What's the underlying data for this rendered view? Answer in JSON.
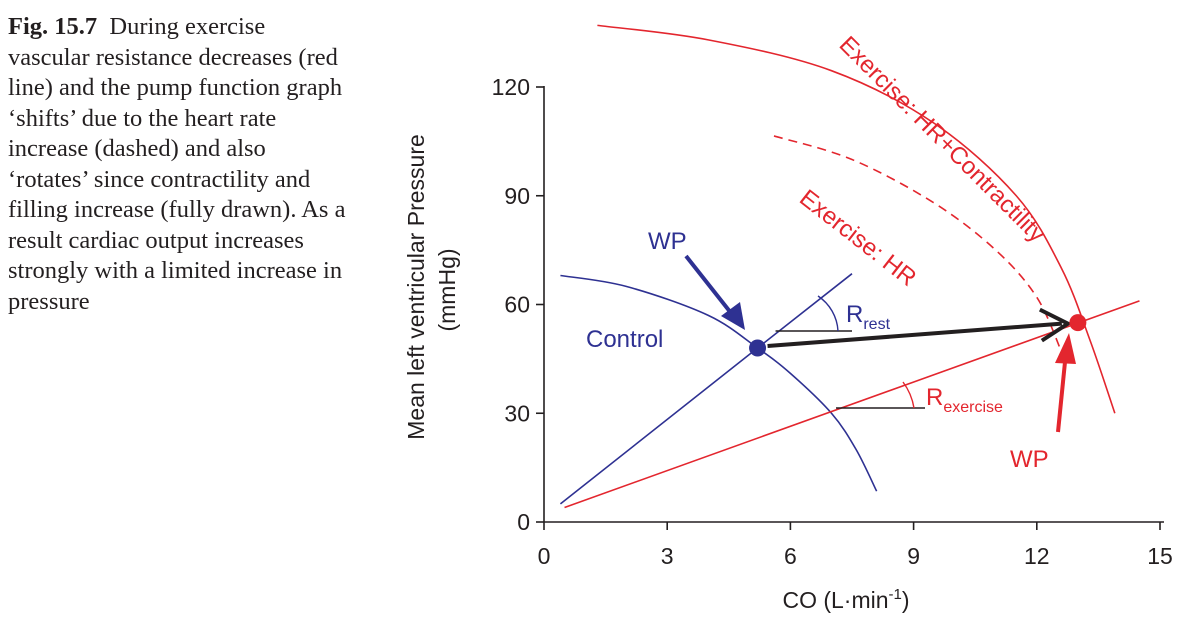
{
  "caption": {
    "label": "Fig. 15.7",
    "text": "During exercise vascular resistance decreases (red line) and the pump function graph ‘shifts’ due to the heart rate increase (dashed) and also ‘rotates’ since contractility and filling increase (fully drawn). As a result cardiac output increases strongly with a limited increase in pressure"
  },
  "colors": {
    "control": "#2e3192",
    "exercise": "#e3262e",
    "axis": "#231f20",
    "arrow": "#231f20"
  },
  "chart_data": {
    "type": "line",
    "title": "",
    "xlabel": "CO (L·min",
    "xlabel_sup": "-1",
    "xlabel_close": ")",
    "ylabel": "Mean left ventricular Pressure",
    "ylabel_unit": "(mmHg)",
    "xlim": [
      0,
      15
    ],
    "ylim": [
      0,
      120
    ],
    "xticks": [
      0,
      3,
      6,
      9,
      12,
      15
    ],
    "yticks": [
      0,
      30,
      60,
      90,
      120
    ],
    "grid": false,
    "series": [
      {
        "name": "Control",
        "style": "solid",
        "color": "#2e3192",
        "x": [
          0.4,
          2.0,
          4.0,
          5.2,
          6.0,
          7.0,
          7.6,
          8.1
        ],
        "y": [
          68,
          65,
          57,
          48,
          41,
          30,
          20,
          8.5
        ]
      },
      {
        "name": "",
        "style": "solid",
        "color": "#2e3192",
        "x": [
          0.4,
          5.2,
          7.5
        ],
        "y": [
          5,
          48,
          68.5
        ]
      },
      {
        "name": "Exercise: HR",
        "style": "dashed",
        "color": "#e3262e",
        "x": [
          5.6,
          7.5,
          9.5,
          11.0,
          12.0,
          12.6
        ],
        "y": [
          106.5,
          100,
          88,
          75,
          62,
          47
        ]
      },
      {
        "name": "Exercise: HR+Contractility",
        "style": "solid",
        "color": "#e3262e",
        "x": [
          1.3,
          4.0,
          7.0,
          9.5,
          11.5,
          12.6,
          13.3,
          13.9
        ],
        "y": [
          137,
          133,
          124.5,
          110,
          90,
          70,
          50,
          30
        ]
      },
      {
        "name": "",
        "style": "solid",
        "color": "#e3262e",
        "x": [
          0.5,
          14.5
        ],
        "y": [
          4,
          61
        ]
      }
    ],
    "points": [
      {
        "label": "WP",
        "x": 5.2,
        "y": 48,
        "color": "#2e3192"
      },
      {
        "label": "WP",
        "x": 13.0,
        "y": 55,
        "color": "#e3262e"
      }
    ],
    "annotations": {
      "control": "Control",
      "exercise_hr": "Exercise: HR",
      "exercise_hrc": "Exercise: HR+Contractility",
      "wp_blue": "WP",
      "wp_red": "WP",
      "r_rest_main": "R",
      "r_rest_sub": "rest",
      "r_ex_main": "R",
      "r_ex_sub": "exercise"
    }
  }
}
